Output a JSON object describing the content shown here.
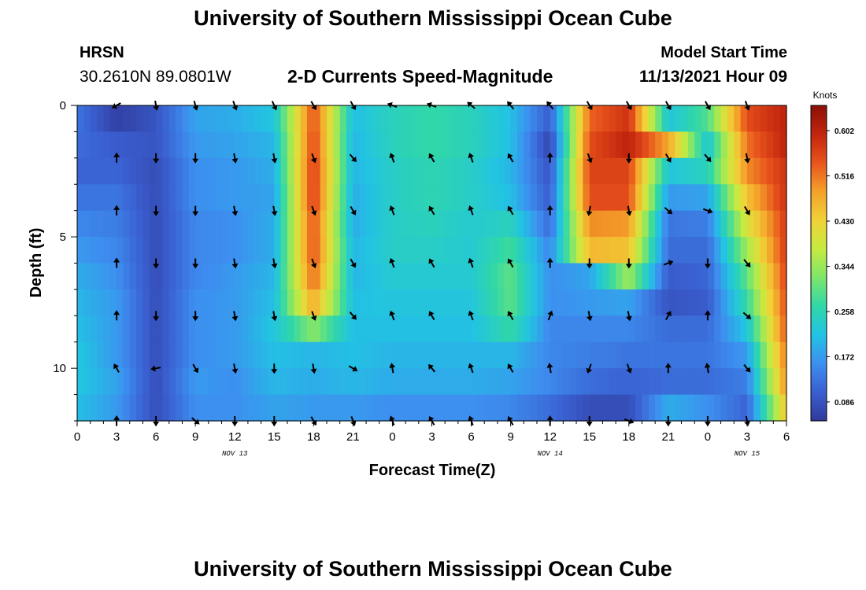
{
  "header": {
    "title": "University of Southern Mississippi Ocean Cube",
    "station": "HRSN",
    "coordinates": "30.2610N  89.0801W",
    "subtitle": "2-D Currents Speed-Magnitude",
    "model_start_label": "Model Start Time",
    "model_start_value": "11/13/2021 Hour 09"
  },
  "footer": {
    "title": "University of Southern Mississippi Ocean Cube"
  },
  "chart_data": {
    "type": "heatmap",
    "title": "2-D Currents Speed-Magnitude",
    "xlabel": "Forecast Time(Z)",
    "ylabel": "Depth (ft)",
    "x_range_hours": [
      0,
      54
    ],
    "y_range_ft": [
      0,
      12
    ],
    "y_inverted": true,
    "x_ticks": [
      {
        "hour": 0,
        "label": "0"
      },
      {
        "hour": 3,
        "label": "3"
      },
      {
        "hour": 6,
        "label": "6"
      },
      {
        "hour": 9,
        "label": "9"
      },
      {
        "hour": 12,
        "label": "12"
      },
      {
        "hour": 15,
        "label": "15"
      },
      {
        "hour": 18,
        "label": "18"
      },
      {
        "hour": 21,
        "label": "21"
      },
      {
        "hour": 24,
        "label": "0"
      },
      {
        "hour": 27,
        "label": "3"
      },
      {
        "hour": 30,
        "label": "6"
      },
      {
        "hour": 33,
        "label": "9"
      },
      {
        "hour": 36,
        "label": "12"
      },
      {
        "hour": 39,
        "label": "15"
      },
      {
        "hour": 42,
        "label": "18"
      },
      {
        "hour": 45,
        "label": "21"
      },
      {
        "hour": 48,
        "label": "0"
      },
      {
        "hour": 51,
        "label": "3"
      },
      {
        "hour": 54,
        "label": "6"
      }
    ],
    "date_labels": [
      {
        "hour": 12,
        "label": "NOV 13"
      },
      {
        "hour": 36,
        "label": "NOV 14"
      },
      {
        "hour": 51,
        "label": "NOV 15"
      }
    ],
    "y_ticks": [
      {
        "value": 0,
        "label": "0"
      },
      {
        "value": 5,
        "label": "5"
      },
      {
        "value": 10,
        "label": "10"
      }
    ],
    "colorbar": {
      "units": "Knots",
      "range": [
        0.05,
        0.65
      ],
      "ticks": [
        0.086,
        0.172,
        0.258,
        0.344,
        0.43,
        0.516,
        0.602
      ],
      "tick_labels": [
        "0.086",
        "0.172",
        "0.258",
        "0.344",
        "0.430",
        "0.516",
        "0.602"
      ],
      "colors": [
        "#303a9a",
        "#3a5fd0",
        "#3d8ff0",
        "#22c3e3",
        "#30d7a8",
        "#7fe66b",
        "#c6ea40",
        "#f0d238",
        "#f4a12a",
        "#e8541c",
        "#c2250e",
        "#8a1006"
      ]
    },
    "depth_layers_ft": [
      0,
      1,
      2,
      3,
      4,
      5,
      6,
      7,
      8,
      9,
      10,
      11
    ],
    "time_hours": [
      0,
      3,
      6,
      9,
      12,
      15,
      18,
      21,
      24,
      27,
      30,
      33,
      36,
      39,
      42,
      45,
      48,
      51,
      54
    ],
    "speed_knots": [
      [
        0.13,
        0.06,
        0.09,
        0.18,
        0.19,
        0.22,
        0.55,
        0.21,
        0.25,
        0.27,
        0.25,
        0.21,
        0.1,
        0.53,
        0.58,
        0.22,
        0.29,
        0.55,
        0.6
      ],
      [
        0.12,
        0.1,
        0.09,
        0.17,
        0.18,
        0.2,
        0.56,
        0.2,
        0.25,
        0.27,
        0.25,
        0.21,
        0.07,
        0.55,
        0.6,
        0.48,
        0.22,
        0.52,
        0.6
      ],
      [
        0.11,
        0.11,
        0.08,
        0.16,
        0.17,
        0.19,
        0.57,
        0.2,
        0.24,
        0.26,
        0.24,
        0.2,
        0.09,
        0.56,
        0.56,
        0.22,
        0.25,
        0.5,
        0.58
      ],
      [
        0.13,
        0.13,
        0.08,
        0.16,
        0.17,
        0.18,
        0.57,
        0.19,
        0.24,
        0.26,
        0.24,
        0.21,
        0.1,
        0.55,
        0.55,
        0.17,
        0.18,
        0.45,
        0.58
      ],
      [
        0.15,
        0.14,
        0.08,
        0.15,
        0.16,
        0.19,
        0.55,
        0.19,
        0.24,
        0.25,
        0.23,
        0.25,
        0.12,
        0.5,
        0.49,
        0.13,
        0.14,
        0.4,
        0.57
      ],
      [
        0.17,
        0.15,
        0.08,
        0.15,
        0.16,
        0.19,
        0.55,
        0.2,
        0.24,
        0.24,
        0.23,
        0.28,
        0.15,
        0.46,
        0.45,
        0.12,
        0.12,
        0.35,
        0.57
      ],
      [
        0.19,
        0.16,
        0.08,
        0.15,
        0.17,
        0.2,
        0.53,
        0.2,
        0.23,
        0.23,
        0.23,
        0.3,
        0.16,
        0.18,
        0.35,
        0.1,
        0.11,
        0.3,
        0.56
      ],
      [
        0.2,
        0.17,
        0.08,
        0.16,
        0.17,
        0.21,
        0.48,
        0.21,
        0.22,
        0.22,
        0.22,
        0.3,
        0.16,
        0.17,
        0.18,
        0.09,
        0.1,
        0.27,
        0.55
      ],
      [
        0.21,
        0.17,
        0.08,
        0.16,
        0.17,
        0.22,
        0.33,
        0.21,
        0.21,
        0.21,
        0.21,
        0.27,
        0.15,
        0.15,
        0.15,
        0.12,
        0.12,
        0.22,
        0.54
      ],
      [
        0.22,
        0.17,
        0.08,
        0.16,
        0.17,
        0.21,
        0.2,
        0.21,
        0.2,
        0.2,
        0.2,
        0.2,
        0.15,
        0.14,
        0.13,
        0.13,
        0.13,
        0.17,
        0.52
      ],
      [
        0.22,
        0.18,
        0.08,
        0.17,
        0.16,
        0.2,
        0.19,
        0.2,
        0.19,
        0.19,
        0.19,
        0.18,
        0.15,
        0.12,
        0.11,
        0.12,
        0.12,
        0.14,
        0.5
      ],
      [
        0.21,
        0.17,
        0.08,
        0.16,
        0.16,
        0.18,
        0.17,
        0.17,
        0.16,
        0.16,
        0.16,
        0.15,
        0.12,
        0.08,
        0.08,
        0.19,
        0.16,
        0.11,
        0.45
      ]
    ],
    "vector_depths_ft": [
      0,
      2,
      4,
      6,
      8,
      10,
      12
    ],
    "vector_times_hours": [
      3,
      6,
      9,
      12,
      15,
      18,
      21,
      24,
      27,
      30,
      33,
      36,
      39,
      42,
      45,
      48,
      51
    ],
    "vector_direction_deg": [
      [
        150,
        80,
        75,
        70,
        65,
        60,
        60,
        200,
        200,
        220,
        230,
        230,
        60,
        60,
        60,
        60,
        70
      ],
      [
        270,
        90,
        90,
        80,
        80,
        70,
        50,
        250,
        240,
        250,
        240,
        270,
        70,
        90,
        60,
        50,
        80
      ],
      [
        270,
        90,
        90,
        80,
        80,
        70,
        60,
        250,
        240,
        250,
        240,
        270,
        100,
        80,
        40,
        20,
        60
      ],
      [
        270,
        90,
        90,
        80,
        80,
        70,
        60,
        250,
        240,
        250,
        240,
        270,
        90,
        90,
        340,
        90,
        50
      ],
      [
        270,
        90,
        90,
        80,
        80,
        70,
        50,
        250,
        240,
        250,
        240,
        290,
        80,
        80,
        300,
        270,
        40
      ],
      [
        240,
        170,
        60,
        80,
        90,
        80,
        30,
        260,
        230,
        250,
        240,
        260,
        110,
        70,
        270,
        260,
        50
      ],
      [
        270,
        90,
        40,
        90,
        90,
        60,
        70,
        250,
        240,
        250,
        240,
        270,
        90,
        20,
        90,
        90,
        80
      ]
    ]
  }
}
